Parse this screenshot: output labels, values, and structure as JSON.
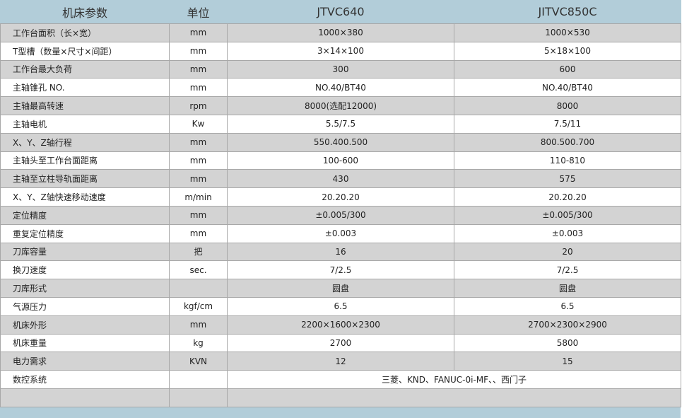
{
  "header": [
    "机床参数",
    "单位",
    "JTVC640",
    "JITVC850C"
  ],
  "rows": [
    [
      "工作台面积（长×宽）",
      "mm",
      "1000×380",
      "1000×530"
    ],
    [
      "T型槽（数量×尺寸×间距）",
      "mm",
      "3×14×100",
      "5×18×100"
    ],
    [
      "工作台最大负荷",
      "mm",
      "300",
      "600"
    ],
    [
      "主轴锥孔 NO.",
      "mm",
      "NO.40/BT40",
      "NO.40/BT40"
    ],
    [
      "主轴最高转速",
      "rpm",
      "8000(选配12000)",
      "8000"
    ],
    [
      "主轴电机",
      "Kw",
      "5.5/7.5",
      "7.5/11"
    ],
    [
      "X、Y、Z轴行程",
      "mm",
      "550.400.500",
      "800.500.700"
    ],
    [
      "主轴头至工作台面距离",
      "mm",
      "100-600",
      "110-810"
    ],
    [
      "主轴至立柱导轨面距离",
      "mm",
      "430",
      "575"
    ],
    [
      "X、Y、Z轴快速移动速度",
      "m/min",
      "20.20.20",
      "20.20.20"
    ],
    [
      "定位精度",
      "mm",
      "±0.005/300",
      "±0.005/300"
    ],
    [
      "重复定位精度",
      "mm",
      "±0.003",
      "±0.003"
    ],
    [
      "刀库容量",
      "把",
      "16",
      "20"
    ],
    [
      "换刀速度",
      "sec.",
      "7/2.5",
      "7/2.5"
    ],
    [
      "刀库形式",
      "",
      "圆盘",
      "圆盘"
    ],
    [
      "气源压力",
      "kgf/cm",
      "6.5",
      "6.5"
    ],
    [
      "机床外形",
      "mm",
      "2200×1600×2300",
      "2700×2300×2900"
    ],
    [
      "机床重量",
      "kg",
      "2700",
      "5800"
    ],
    [
      "电力需求",
      "KVN",
      "12",
      "15"
    ]
  ],
  "cnc_row": [
    "数控系统",
    "",
    "三菱、KND、FANUC-0i-MF、、西门子"
  ]
}
